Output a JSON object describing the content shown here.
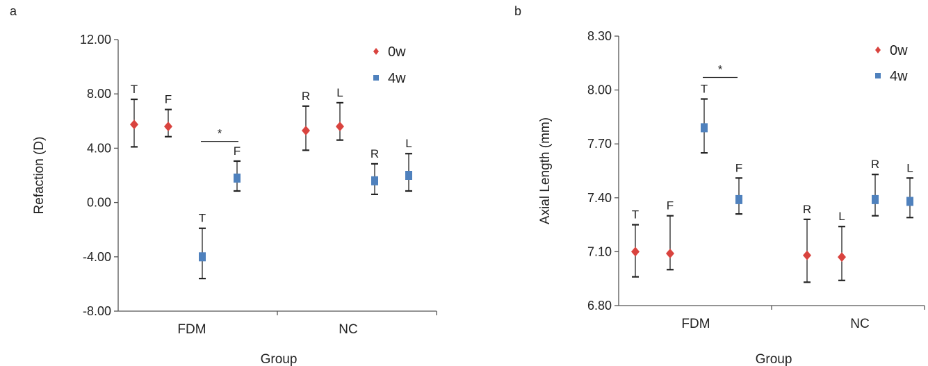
{
  "colors": {
    "w0": "#d9433e",
    "w4": "#4f81bd",
    "axis": "#555555",
    "err": "#222222"
  },
  "chart_data": [
    {
      "panel": "a",
      "type": "scatter",
      "ylabel": "Refaction (D)",
      "xlabel": "Group",
      "ylim": [
        -8,
        12
      ],
      "yticks": [
        "12.00",
        "8.00",
        "4.00",
        "0.00",
        "-4.00",
        "-8.00"
      ],
      "ytick_values": [
        12,
        8,
        4,
        0,
        -4,
        -8
      ],
      "categories": [
        "FDM",
        "NC"
      ],
      "legend": {
        "position": "top-right",
        "entries": [
          "0w",
          "4w"
        ]
      },
      "significance": {
        "label": "*",
        "between": [
          "T",
          "F"
        ],
        "y": 4.5
      },
      "points": [
        {
          "series": "0w",
          "label": "T",
          "y": 5.75,
          "low": 4.1,
          "high": 7.6
        },
        {
          "series": "0w",
          "label": "F",
          "y": 5.6,
          "low": 4.85,
          "high": 6.85
        },
        {
          "series": "4w",
          "label": "T",
          "y": -4.0,
          "low": -5.6,
          "high": -1.9
        },
        {
          "series": "4w",
          "label": "F",
          "y": 1.8,
          "low": 0.85,
          "high": 3.05
        },
        {
          "series": "0w",
          "label": "R",
          "y": 5.3,
          "low": 3.85,
          "high": 7.1
        },
        {
          "series": "0w",
          "label": "L",
          "y": 5.6,
          "low": 4.6,
          "high": 7.35
        },
        {
          "series": "4w",
          "label": "R",
          "y": 1.6,
          "low": 0.6,
          "high": 2.85
        },
        {
          "series": "4w",
          "label": "L",
          "y": 2.0,
          "low": 0.85,
          "high": 3.6
        }
      ]
    },
    {
      "panel": "b",
      "type": "scatter",
      "ylabel": "Axial Length (mm)",
      "xlabel": "Group",
      "ylim": [
        6.8,
        8.3
      ],
      "yticks": [
        "8.30",
        "8.00",
        "7.70",
        "7.40",
        "7.10",
        "6.80"
      ],
      "ytick_values": [
        8.3,
        8.0,
        7.7,
        7.4,
        7.1,
        6.8
      ],
      "categories": [
        "FDM",
        "NC"
      ],
      "legend": {
        "position": "top-right",
        "entries": [
          "0w",
          "4w"
        ]
      },
      "significance": {
        "label": "*",
        "between": [
          "F",
          "T"
        ],
        "y": 8.07
      },
      "points": [
        {
          "series": "0w",
          "label": "T",
          "y": 7.1,
          "low": 6.96,
          "high": 7.25
        },
        {
          "series": "0w",
          "label": "F",
          "y": 7.09,
          "low": 7.0,
          "high": 7.3
        },
        {
          "series": "4w",
          "label": "T",
          "y": 7.79,
          "low": 7.65,
          "high": 7.95
        },
        {
          "series": "4w",
          "label": "F",
          "y": 7.39,
          "low": 7.31,
          "high": 7.51
        },
        {
          "series": "0w",
          "label": "R",
          "y": 7.08,
          "low": 6.93,
          "high": 7.28
        },
        {
          "series": "0w",
          "label": "L",
          "y": 7.07,
          "low": 6.94,
          "high": 7.24
        },
        {
          "series": "4w",
          "label": "R",
          "y": 7.39,
          "low": 7.3,
          "high": 7.53
        },
        {
          "series": "4w",
          "label": "L",
          "y": 7.38,
          "low": 7.29,
          "high": 7.51
        }
      ]
    }
  ]
}
